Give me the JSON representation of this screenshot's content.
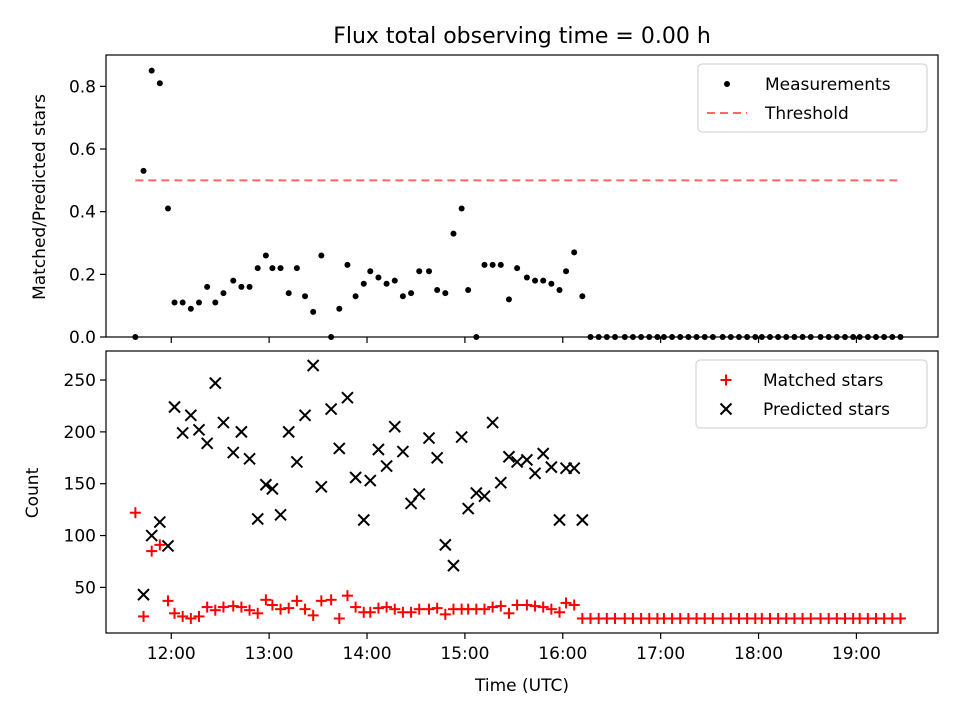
{
  "chart_data": [
    {
      "type": "scatter",
      "title": "Flux total observing time = 0.00 h",
      "xlabel": "",
      "ylabel": "Matched/Predicted stars",
      "ylim": [
        0,
        0.9
      ],
      "yticks": [
        "0.0",
        "0.2",
        "0.4",
        "0.6",
        "0.8"
      ],
      "legend_position": "top-right",
      "series": [
        {
          "name": "Measurements",
          "marker": "dot",
          "color": "#000000",
          "x": [
            "11:38",
            "11:43",
            "11:48",
            "11:53",
            "11:58",
            "12:02",
            "12:07",
            "12:12",
            "12:17",
            "12:22",
            "12:27",
            "12:32",
            "12:38",
            "12:43",
            "12:48",
            "12:53",
            "12:58",
            "13:02",
            "13:07",
            "13:12",
            "13:17",
            "13:22",
            "13:27",
            "13:32",
            "13:38",
            "13:43",
            "13:48",
            "13:53",
            "13:58",
            "14:02",
            "14:07",
            "14:12",
            "14:17",
            "14:22",
            "14:27",
            "14:32",
            "14:38",
            "14:43",
            "14:48",
            "14:53",
            "14:58",
            "15:02",
            "15:07",
            "15:12",
            "15:17",
            "15:22",
            "15:27",
            "15:32",
            "15:38",
            "15:43",
            "15:48",
            "15:53",
            "15:58",
            "16:02",
            "16:07",
            "16:12",
            "16:17",
            "16:22",
            "16:27",
            "16:32",
            "16:38",
            "16:43",
            "16:48",
            "16:53",
            "16:58",
            "17:02",
            "17:07",
            "17:12",
            "17:17",
            "17:22",
            "17:27",
            "17:32",
            "17:38",
            "17:43",
            "17:48",
            "17:53",
            "17:58",
            "18:02",
            "18:07",
            "18:12",
            "18:17",
            "18:22",
            "18:27",
            "18:32",
            "18:38",
            "18:43",
            "18:48",
            "18:53",
            "18:58",
            "19:02",
            "19:07",
            "19:12",
            "19:17",
            "19:22",
            "19:27"
          ],
          "y": [
            0.0,
            0.53,
            0.85,
            0.81,
            0.41,
            0.11,
            0.11,
            0.09,
            0.11,
            0.16,
            0.11,
            0.14,
            0.18,
            0.16,
            0.16,
            0.22,
            0.26,
            0.22,
            0.22,
            0.14,
            0.22,
            0.13,
            0.08,
            0.26,
            0.0,
            0.09,
            0.23,
            0.13,
            0.17,
            0.21,
            0.19,
            0.17,
            0.18,
            0.13,
            0.14,
            0.21,
            0.21,
            0.15,
            0.14,
            0.33,
            0.41,
            0.15,
            0.0,
            0.23,
            0.23,
            0.23,
            0.12,
            0.22,
            0.19,
            0.18,
            0.18,
            0.17,
            0.15,
            0.21,
            0.27,
            0.13,
            0.0,
            0.0,
            0.0,
            0.0,
            0.0,
            0.0,
            0.0,
            0.0,
            0.0,
            0.0,
            0.0,
            0.0,
            0.0,
            0.0,
            0.0,
            0.0,
            0.0,
            0.0,
            0.0,
            0.0,
            0.0,
            0.0,
            0.0,
            0.0,
            0.0,
            0.0,
            0.0,
            0.0,
            0.0,
            0.0,
            0.0,
            0.0,
            0.0,
            0.0,
            0.0,
            0.0,
            0.0,
            0.0,
            0.0
          ]
        },
        {
          "name": "Threshold",
          "style": "dashed",
          "color": "#ff6666",
          "x": [
            "11:38",
            "19:27"
          ],
          "y": [
            0.5,
            0.5
          ]
        }
      ]
    },
    {
      "type": "scatter",
      "title": "",
      "xlabel": "Time (UTC)",
      "ylabel": "Count",
      "ylim": [
        6,
        278
      ],
      "yticks": [
        "50",
        "100",
        "150",
        "200",
        "250"
      ],
      "xlim": [
        "11:20",
        "19:50"
      ],
      "xticks": [
        "12:00",
        "13:00",
        "14:00",
        "15:00",
        "16:00",
        "17:00",
        "18:00",
        "19:00"
      ],
      "legend_position": "top-right",
      "series": [
        {
          "name": "Matched stars",
          "marker": "plus",
          "color": "#ff0000",
          "x": [
            "11:38",
            "11:43",
            "11:48",
            "11:53",
            "11:58",
            "12:02",
            "12:07",
            "12:12",
            "12:17",
            "12:22",
            "12:27",
            "12:32",
            "12:38",
            "12:43",
            "12:48",
            "12:53",
            "12:58",
            "13:02",
            "13:07",
            "13:12",
            "13:17",
            "13:22",
            "13:27",
            "13:32",
            "13:38",
            "13:43",
            "13:48",
            "13:53",
            "13:58",
            "14:02",
            "14:07",
            "14:12",
            "14:17",
            "14:22",
            "14:27",
            "14:32",
            "14:38",
            "14:43",
            "14:48",
            "14:53",
            "14:58",
            "15:02",
            "15:07",
            "15:12",
            "15:17",
            "15:22",
            "15:27",
            "15:32",
            "15:38",
            "15:43",
            "15:48",
            "15:53",
            "15:58",
            "16:02",
            "16:07",
            "16:12",
            "16:17",
            "16:22",
            "16:27",
            "16:32",
            "16:38",
            "16:43",
            "16:48",
            "16:53",
            "16:58",
            "17:02",
            "17:07",
            "17:12",
            "17:17",
            "17:22",
            "17:27",
            "17:32",
            "17:38",
            "17:43",
            "17:48",
            "17:53",
            "17:58",
            "18:02",
            "18:07",
            "18:12",
            "18:17",
            "18:22",
            "18:27",
            "18:32",
            "18:38",
            "18:43",
            "18:48",
            "18:53",
            "18:58",
            "19:02",
            "19:07",
            "19:12",
            "19:17",
            "19:22",
            "19:27"
          ],
          "y": [
            122,
            22,
            85,
            91,
            37,
            25,
            22,
            20,
            22,
            31,
            28,
            31,
            32,
            31,
            28,
            25,
            38,
            33,
            29,
            30,
            37,
            29,
            23,
            37,
            38,
            20,
            42,
            31,
            26,
            26,
            30,
            31,
            29,
            26,
            26,
            29,
            29,
            30,
            24,
            29,
            29,
            29,
            29,
            29,
            31,
            32,
            25,
            33,
            33,
            32,
            31,
            29,
            26,
            35,
            33,
            20,
            20,
            20,
            20,
            20,
            20,
            20,
            20,
            20,
            20,
            20,
            20,
            20,
            20,
            20,
            20,
            20,
            20,
            20,
            20,
            20,
            20,
            20,
            20,
            20,
            20,
            20,
            20,
            20,
            20,
            20,
            20,
            20,
            20,
            20,
            20,
            20,
            20,
            20,
            20
          ]
        },
        {
          "name": "Predicted stars",
          "marker": "x",
          "color": "#000000",
          "x": [
            "11:43",
            "11:48",
            "11:53",
            "11:58",
            "12:02",
            "12:07",
            "12:12",
            "12:17",
            "12:22",
            "12:27",
            "12:32",
            "12:38",
            "12:43",
            "12:48",
            "12:53",
            "12:58",
            "13:02",
            "13:07",
            "13:12",
            "13:17",
            "13:22",
            "13:27",
            "13:32",
            "13:38",
            "13:43",
            "13:48",
            "13:53",
            "13:58",
            "14:02",
            "14:07",
            "14:12",
            "14:17",
            "14:22",
            "14:27",
            "14:32",
            "14:38",
            "14:43",
            "14:48",
            "14:53",
            "14:58",
            "15:02",
            "15:07",
            "15:12",
            "15:17",
            "15:22",
            "15:27",
            "15:32",
            "15:38",
            "15:43",
            "15:48",
            "15:53",
            "15:58",
            "16:02",
            "16:07",
            "16:12"
          ],
          "y": [
            43,
            100,
            113,
            90,
            224,
            199,
            216,
            202,
            189,
            247,
            209,
            180,
            200,
            174,
            116,
            149,
            145,
            120,
            200,
            171,
            216,
            264,
            147,
            222,
            184,
            233,
            156,
            115,
            153,
            183,
            167,
            205,
            181,
            131,
            140,
            194,
            175,
            91,
            71,
            195,
            126,
            141,
            138,
            209,
            151,
            176,
            171,
            173,
            160,
            179,
            166,
            115,
            165,
            165,
            115
          ]
        }
      ]
    }
  ]
}
